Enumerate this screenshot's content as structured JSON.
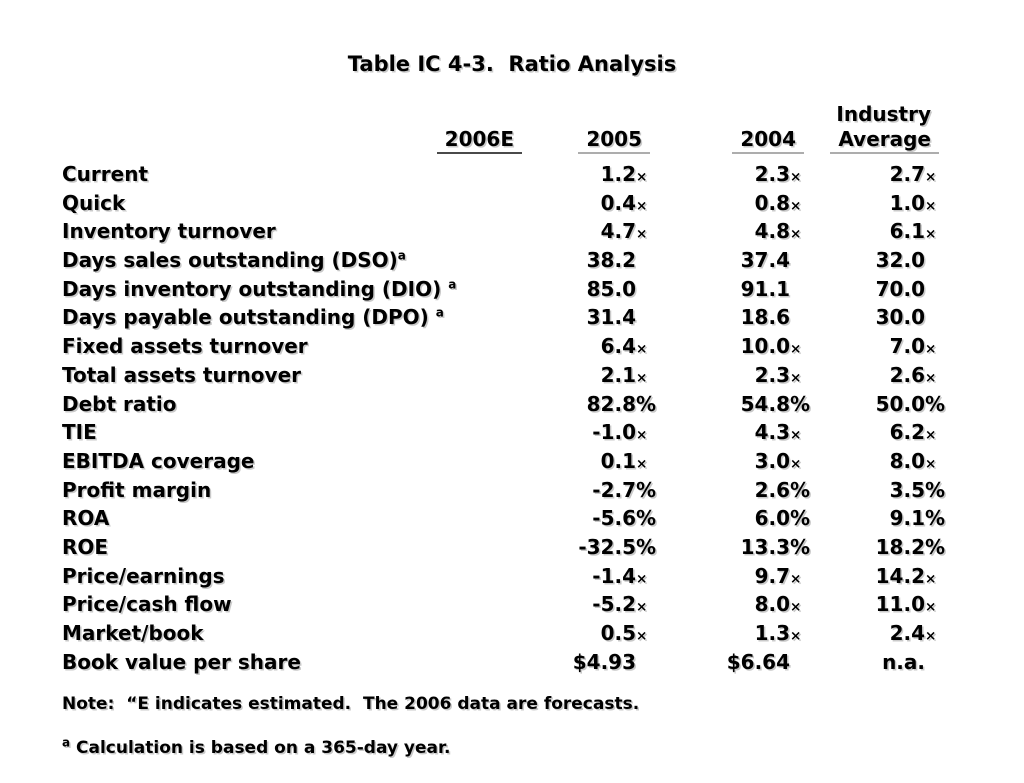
{
  "title": "Table IC 4-3.  Ratio Analysis",
  "colors": {
    "background": "#ffffff",
    "text": "#000000",
    "text_shadow": "#c9c9c9",
    "header_underline_dark": "#4a4a4a",
    "header_underline_gray": "#adadad"
  },
  "table": {
    "headers": {
      "industry_line1": "Industry",
      "industry_line2": "Average",
      "col_2006": "2006E",
      "col_2005": "2005",
      "col_2004": "2004"
    },
    "rows": [
      {
        "label": "Current",
        "sup": "",
        "cells": [
          {
            "n": "",
            "s": ""
          },
          {
            "n": "1.2",
            "s": "×"
          },
          {
            "n": "2.3",
            "s": "×"
          },
          {
            "n": "2.7",
            "s": "×"
          }
        ]
      },
      {
        "label": "Quick",
        "sup": "",
        "cells": [
          {
            "n": "",
            "s": ""
          },
          {
            "n": "0.4",
            "s": "×"
          },
          {
            "n": "0.8",
            "s": "×"
          },
          {
            "n": "1.0",
            "s": "×"
          }
        ]
      },
      {
        "label": "Inventory turnover",
        "sup": "",
        "cells": [
          {
            "n": "",
            "s": ""
          },
          {
            "n": "4.7",
            "s": "×"
          },
          {
            "n": "4.8",
            "s": "×"
          },
          {
            "n": "6.1",
            "s": "×"
          }
        ]
      },
      {
        "label": "Days sales outstanding (DSO)",
        "sup": "a",
        "cells": [
          {
            "n": "",
            "s": ""
          },
          {
            "n": "38.2",
            "s": ""
          },
          {
            "n": "37.4",
            "s": ""
          },
          {
            "n": "32.0",
            "s": ""
          }
        ]
      },
      {
        "label": "Days inventory outstanding (DIO) ",
        "sup": "a",
        "cells": [
          {
            "n": "",
            "s": ""
          },
          {
            "n": "85.0",
            "s": ""
          },
          {
            "n": "91.1",
            "s": ""
          },
          {
            "n": "70.0",
            "s": ""
          }
        ]
      },
      {
        "label": "Days payable outstanding (DPO) ",
        "sup": "a",
        "cells": [
          {
            "n": "",
            "s": ""
          },
          {
            "n": "31.4",
            "s": ""
          },
          {
            "n": "18.6",
            "s": ""
          },
          {
            "n": "30.0",
            "s": ""
          }
        ]
      },
      {
        "label": "Fixed assets turnover",
        "sup": "",
        "cells": [
          {
            "n": "",
            "s": ""
          },
          {
            "n": "6.4",
            "s": "×"
          },
          {
            "n": "10.0",
            "s": "×"
          },
          {
            "n": "7.0",
            "s": "×"
          }
        ]
      },
      {
        "label": "Total assets turnover",
        "sup": "",
        "cells": [
          {
            "n": "",
            "s": ""
          },
          {
            "n": "2.1",
            "s": "×"
          },
          {
            "n": "2.3",
            "s": "×"
          },
          {
            "n": "2.6",
            "s": "×"
          }
        ]
      },
      {
        "label": "Debt ratio",
        "sup": "",
        "cells": [
          {
            "n": "",
            "s": ""
          },
          {
            "n": "82.8",
            "s": "%"
          },
          {
            "n": "54.8",
            "s": "%"
          },
          {
            "n": "50.0",
            "s": "%"
          }
        ]
      },
      {
        "label": "TIE",
        "sup": "",
        "cells": [
          {
            "n": "",
            "s": ""
          },
          {
            "n": "-1.0",
            "s": "×"
          },
          {
            "n": "4.3",
            "s": "×"
          },
          {
            "n": "6.2",
            "s": "×"
          }
        ]
      },
      {
        "label": "EBITDA coverage",
        "sup": "",
        "cells": [
          {
            "n": "",
            "s": ""
          },
          {
            "n": "0.1",
            "s": "×"
          },
          {
            "n": "3.0",
            "s": "×"
          },
          {
            "n": "8.0",
            "s": "×"
          }
        ]
      },
      {
        "label": "Profit margin",
        "sup": "",
        "cells": [
          {
            "n": "",
            "s": ""
          },
          {
            "n": "-2.7",
            "s": "%"
          },
          {
            "n": "2.6",
            "s": "%"
          },
          {
            "n": "3.5",
            "s": "%"
          }
        ]
      },
      {
        "label": "ROA",
        "sup": "",
        "cells": [
          {
            "n": "",
            "s": ""
          },
          {
            "n": "-5.6",
            "s": "%"
          },
          {
            "n": "6.0",
            "s": "%"
          },
          {
            "n": "9.1",
            "s": "%"
          }
        ]
      },
      {
        "label": "ROE",
        "sup": "",
        "cells": [
          {
            "n": "",
            "s": ""
          },
          {
            "n": "-32.5",
            "s": "%"
          },
          {
            "n": "13.3",
            "s": "%"
          },
          {
            "n": "18.2",
            "s": "%"
          }
        ]
      },
      {
        "label": "Price/earnings",
        "sup": "",
        "cells": [
          {
            "n": "",
            "s": ""
          },
          {
            "n": "-1.4",
            "s": "×"
          },
          {
            "n": "9.7",
            "s": "×"
          },
          {
            "n": "14.2",
            "s": "×"
          }
        ]
      },
      {
        "label": "Price/cash flow",
        "sup": "",
        "cells": [
          {
            "n": "",
            "s": ""
          },
          {
            "n": "-5.2",
            "s": "×"
          },
          {
            "n": "8.0",
            "s": "×"
          },
          {
            "n": "11.0",
            "s": "×"
          }
        ]
      },
      {
        "label": "Market/book",
        "sup": "",
        "cells": [
          {
            "n": "",
            "s": ""
          },
          {
            "n": "0.5",
            "s": "×"
          },
          {
            "n": "1.3",
            "s": "×"
          },
          {
            "n": "2.4",
            "s": "×"
          }
        ]
      },
      {
        "label": "Book value per share",
        "sup": "",
        "cells": [
          {
            "n": "",
            "s": ""
          },
          {
            "n": "$4.93",
            "s": ""
          },
          {
            "n": "$6.64",
            "s": ""
          },
          {
            "n": "n.a.",
            "s": ""
          }
        ]
      }
    ]
  },
  "notes": {
    "note": "Note:  “E indicates estimated.  The 2006 data are forecasts.",
    "footnote_sup": "a",
    "footnote_text": " Calculation is based on a 365-day year."
  }
}
